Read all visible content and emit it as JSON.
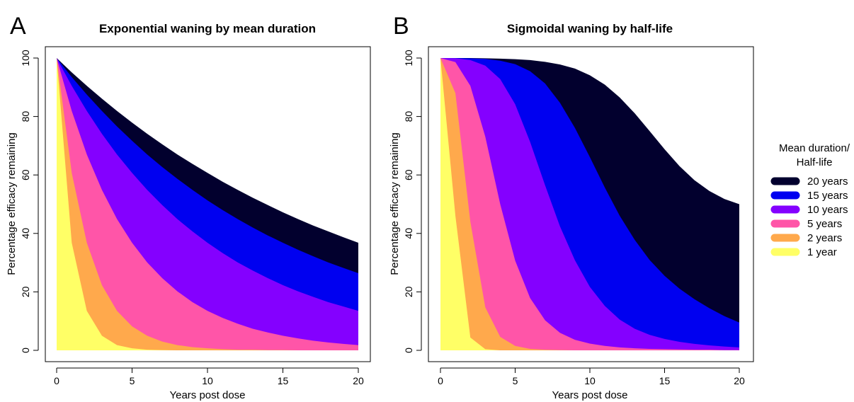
{
  "legend": {
    "title_line1": "Mean duration/",
    "title_line2": "Half-life",
    "entries": [
      {
        "label": "20 years",
        "color": "#02002e"
      },
      {
        "label": "15 years",
        "color": "#0000f0"
      },
      {
        "label": "10 years",
        "color": "#8400ff"
      },
      {
        "label": "5 years",
        "color": "#ff55a8"
      },
      {
        "label": "2 years",
        "color": "#ffa94c"
      },
      {
        "label": "1 year",
        "color": "#ffff66"
      }
    ]
  },
  "chart_data": [
    {
      "panel_letter": "A",
      "type": "area",
      "title": "Exponential waning by mean duration",
      "xlabel": "Years post dose",
      "ylabel": "Percentage efficacy remaining",
      "xlim": [
        0,
        20
      ],
      "ylim": [
        0,
        100
      ],
      "xticks": [
        "0",
        "5",
        "10",
        "15",
        "20"
      ],
      "yticks": [
        "0",
        "20",
        "40",
        "60",
        "80",
        "100"
      ],
      "grid": false,
      "legend": "right",
      "x": [
        0,
        1,
        2,
        3,
        4,
        5,
        6,
        7,
        8,
        9,
        10,
        11,
        12,
        13,
        14,
        15,
        16,
        17,
        18,
        19,
        20
      ],
      "series": [
        {
          "name": "20 years",
          "values": [
            100,
            95.1,
            90.5,
            86.1,
            81.9,
            77.9,
            74.1,
            70.5,
            67.0,
            63.8,
            60.7,
            57.7,
            54.9,
            52.2,
            49.7,
            47.2,
            44.9,
            42.7,
            40.7,
            38.7,
            36.8
          ]
        },
        {
          "name": "15 years",
          "values": [
            100,
            93.5,
            87.5,
            81.9,
            76.6,
            71.7,
            67.0,
            62.7,
            58.7,
            54.9,
            51.3,
            48.0,
            44.9,
            42.0,
            39.3,
            36.8,
            34.4,
            32.2,
            30.1,
            28.2,
            26.4
          ]
        },
        {
          "name": "10 years",
          "values": [
            100,
            90.5,
            81.9,
            74.1,
            67.0,
            60.7,
            54.9,
            49.7,
            44.9,
            40.7,
            36.8,
            33.3,
            30.1,
            27.3,
            24.7,
            22.3,
            20.2,
            18.3,
            16.5,
            15.0,
            13.5
          ]
        },
        {
          "name": "5 years",
          "values": [
            100,
            81.9,
            67.0,
            54.9,
            44.9,
            36.8,
            30.1,
            24.7,
            20.2,
            16.5,
            13.5,
            11.1,
            9.1,
            7.4,
            6.1,
            5.0,
            4.1,
            3.3,
            2.7,
            2.2,
            1.8
          ]
        },
        {
          "name": "2 years",
          "values": [
            100,
            60.7,
            36.8,
            22.3,
            13.5,
            8.2,
            5.0,
            3.0,
            1.8,
            1.1,
            0.7,
            0.4,
            0.2,
            0.2,
            0.1,
            0.1,
            0.0,
            0.0,
            0.0,
            0.0,
            0.0
          ]
        },
        {
          "name": "1 year",
          "values": [
            100,
            36.8,
            13.5,
            5.0,
            1.8,
            0.7,
            0.2,
            0.1,
            0.0,
            0.0,
            0.0,
            0.0,
            0.0,
            0.0,
            0.0,
            0.0,
            0.0,
            0.0,
            0.0,
            0.0,
            0.0
          ]
        }
      ]
    },
    {
      "panel_letter": "B",
      "type": "area",
      "title": "Sigmoidal waning by half-life",
      "xlabel": "Years post dose",
      "ylabel": "Percentage efficacy remaining",
      "xlim": [
        0,
        20
      ],
      "ylim": [
        0,
        100
      ],
      "xticks": [
        "0",
        "5",
        "10",
        "15",
        "20"
      ],
      "yticks": [
        "0",
        "20",
        "40",
        "60",
        "80",
        "100"
      ],
      "grid": false,
      "legend": "right",
      "x": [
        0,
        1,
        2,
        3,
        4,
        5,
        6,
        7,
        8,
        9,
        10,
        11,
        12,
        13,
        14,
        15,
        16,
        17,
        18,
        19,
        20
      ],
      "series": [
        {
          "name": "20 years",
          "values": [
            100,
            100,
            100,
            99.9,
            99.8,
            99.6,
            99.3,
            98.7,
            97.8,
            96.4,
            94.1,
            90.9,
            86.5,
            81.1,
            75.0,
            68.8,
            63.0,
            58.2,
            54.5,
            51.8,
            50.0
          ]
        },
        {
          "name": "15 years",
          "values": [
            100,
            100,
            99.9,
            99.7,
            99.1,
            97.9,
            95.5,
            91.3,
            84.7,
            76.1,
            66.1,
            55.7,
            46.0,
            37.8,
            30.9,
            25.5,
            21.1,
            17.5,
            14.4,
            11.7,
            9.5
          ]
        },
        {
          "name": "10 years",
          "values": [
            100,
            99.9,
            99.3,
            97.4,
            92.8,
            84.2,
            71.3,
            56.5,
            42.4,
            30.8,
            21.7,
            15.2,
            10.5,
            7.4,
            5.3,
            3.9,
            2.9,
            2.2,
            1.7,
            1.3,
            1.0
          ]
        },
        {
          "name": "5 years",
          "values": [
            100,
            98.6,
            90.5,
            73.1,
            50.0,
            30.7,
            17.9,
            10.3,
            6.0,
            3.6,
            2.3,
            1.5,
            1.0,
            0.7,
            0.5,
            0.4,
            0.3,
            0.2,
            0.2,
            0.1,
            0.1
          ]
        },
        {
          "name": "2 years",
          "values": [
            100,
            88.0,
            44.0,
            14.7,
            4.6,
            1.5,
            0.5,
            0.2,
            0.1,
            0.0,
            0.0,
            0.0,
            0.0,
            0.0,
            0.0,
            0.0,
            0.0,
            0.0,
            0.0,
            0.0,
            0.0
          ]
        },
        {
          "name": "1 year",
          "values": [
            100,
            46.0,
            4.4,
            0.4,
            0.0,
            0.0,
            0.0,
            0.0,
            0.0,
            0.0,
            0.0,
            0.0,
            0.0,
            0.0,
            0.0,
            0.0,
            0.0,
            0.0,
            0.0,
            0.0,
            0.0
          ]
        }
      ]
    }
  ]
}
